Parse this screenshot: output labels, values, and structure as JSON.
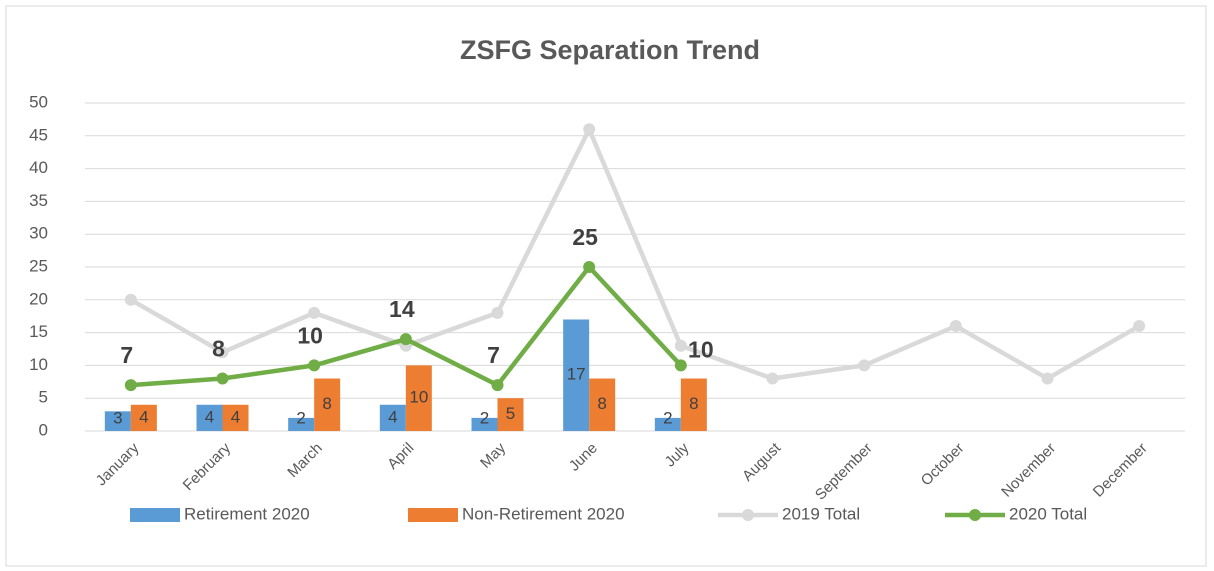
{
  "chart_data": {
    "type": "combo",
    "title": "ZSFG Separation Trend",
    "categories": [
      "January",
      "February",
      "March",
      "April",
      "May",
      "June",
      "July",
      "August",
      "September",
      "October",
      "November",
      "December"
    ],
    "ylim": [
      0,
      50
    ],
    "yticks": [
      0,
      5,
      10,
      15,
      20,
      25,
      30,
      35,
      40,
      45,
      50
    ],
    "grid": true,
    "legend": "bottom",
    "series": [
      {
        "name": "Retirement 2020",
        "type": "bar",
        "color": "#5b9bd5",
        "values": [
          3,
          4,
          2,
          4,
          2,
          17,
          2,
          null,
          null,
          null,
          null,
          null
        ]
      },
      {
        "name": "Non-Retirement 2020",
        "type": "bar",
        "color": "#ed7d31",
        "values": [
          4,
          4,
          8,
          10,
          5,
          8,
          8,
          null,
          null,
          null,
          null,
          null
        ]
      },
      {
        "name": "2019 Total",
        "type": "line",
        "color": "#d9d9d9",
        "values": [
          20,
          12,
          18,
          13,
          18,
          46,
          13,
          8,
          10,
          16,
          8,
          16
        ]
      },
      {
        "name": "2020 Total",
        "type": "line",
        "color": "#70ad47",
        "values": [
          7,
          8,
          10,
          14,
          7,
          25,
          10,
          null,
          null,
          null,
          null,
          null
        ]
      }
    ]
  }
}
